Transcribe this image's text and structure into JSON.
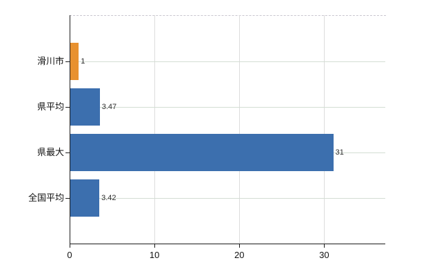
{
  "chart_data": {
    "type": "bar",
    "orientation": "horizontal",
    "categories": [
      "滑川市",
      "県平均",
      "県最大",
      "全国平均"
    ],
    "values": [
      1,
      3.47,
      31,
      3.42
    ],
    "value_labels": [
      "1",
      "3.47",
      "31",
      "3.42"
    ],
    "bar_colors": [
      "#e8912f",
      "#3c6fae",
      "#3c6fae",
      "#3c6fae"
    ],
    "x_ticks": [
      0,
      10,
      20,
      30
    ],
    "x_tick_labels": [
      "0",
      "10",
      "20",
      "30"
    ],
    "xlim": [
      0,
      37.2
    ],
    "grid": true,
    "legend": "none",
    "colors": {
      "highlight_bar": "#e8912f",
      "default_bar": "#3c6fae",
      "axis": "#1a1a1a",
      "gridline_vertical": "#dcdcdc",
      "gridline_horizontal": "#d3ddd3",
      "top_border_dashed": "#c9c6cf"
    }
  }
}
